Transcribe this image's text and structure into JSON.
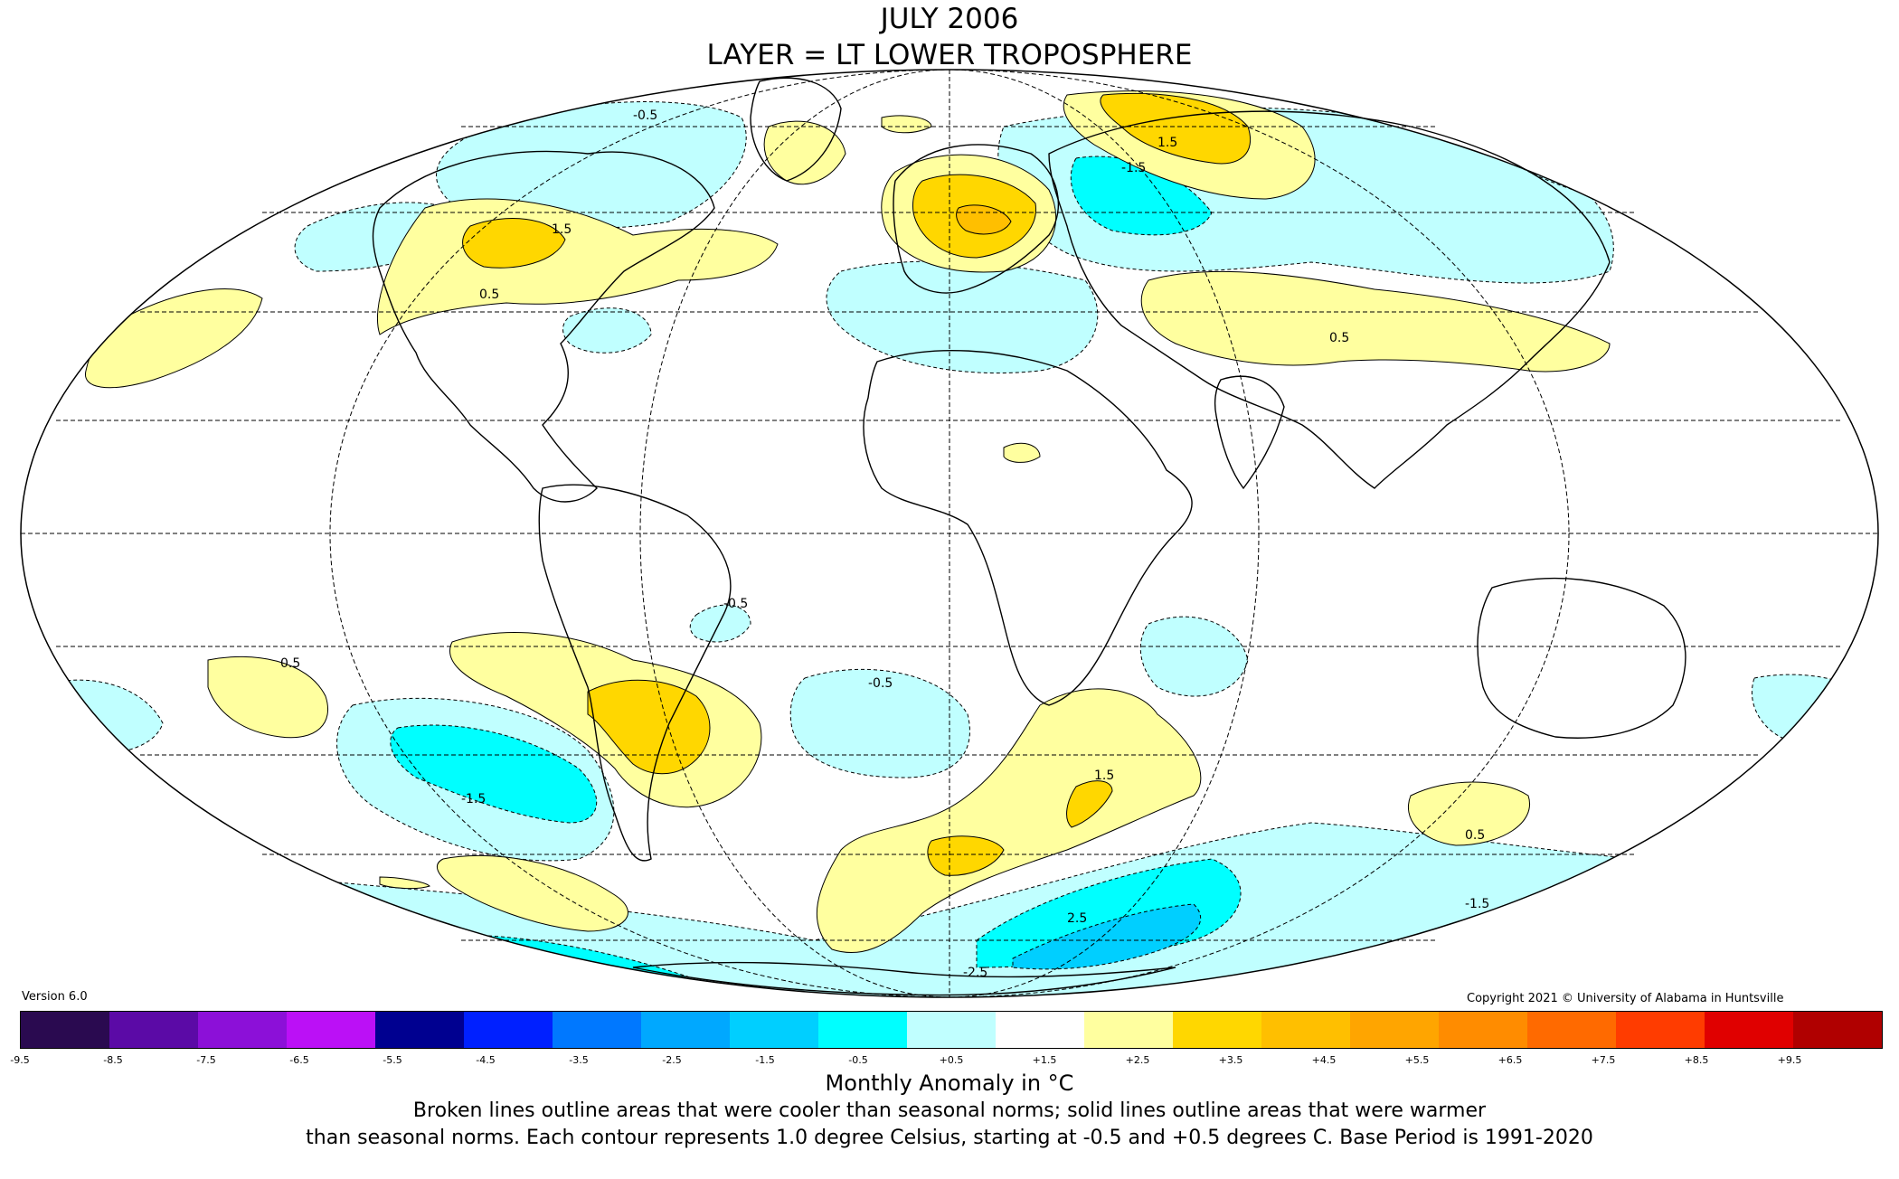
{
  "title": {
    "line1": "JULY 2006",
    "line2": "LAYER = LT LOWER TROPOSPHERE"
  },
  "version": "Version 6.0",
  "copyright": "Copyright 2021 © University of Alabama in Huntsville",
  "colorbar": {
    "label": "Monthly Anomaly in °C",
    "ticks": [
      "-9.5",
      "-8.5",
      "-7.5",
      "-6.5",
      "-5.5",
      "-4.5",
      "-3.5",
      "-2.5",
      "-1.5",
      "-0.5",
      "+0.5",
      "+1.5",
      "+2.5",
      "+3.5",
      "+4.5",
      "+5.5",
      "+6.5",
      "+7.5",
      "+8.5",
      "+9.5"
    ],
    "colors": [
      "#2a0a50",
      "#5b0aa6",
      "#8c10d8",
      "#bb10f6",
      "#000090",
      "#0020ff",
      "#0078ff",
      "#00a8ff",
      "#00cfff",
      "#00ffff",
      "#c0ffff",
      "#ffffff",
      "#ffff9f",
      "#ffd700",
      "#ffbf00",
      "#ffa500",
      "#ff8c00",
      "#ff6a00",
      "#ff3c00",
      "#e00000",
      "#b00000"
    ]
  },
  "notes": {
    "line1": "Broken lines outline areas that were cooler than seasonal norms; solid lines outline areas that were warmer",
    "line2": "than seasonal norms. Each contour represents 1.0 degree Celsius, starting at -0.5 and +0.5 degrees C. Base Period is 1991-2020"
  },
  "contour_labels": [
    "-0.5",
    "0.5",
    "1.5",
    "-1.5",
    "2.5",
    "-2.5",
    "0.5",
    "1.5",
    "-0.5",
    "0.5",
    "1.5",
    "-1.5",
    "-0.5",
    "-1.5",
    "0.5"
  ],
  "map_colors": {
    "warm1": "#ffff9f",
    "warm2": "#ffd700",
    "warm3": "#ffbf00",
    "cool1": "#c0ffff",
    "cool2": "#00ffff",
    "cool3": "#00cfff"
  }
}
